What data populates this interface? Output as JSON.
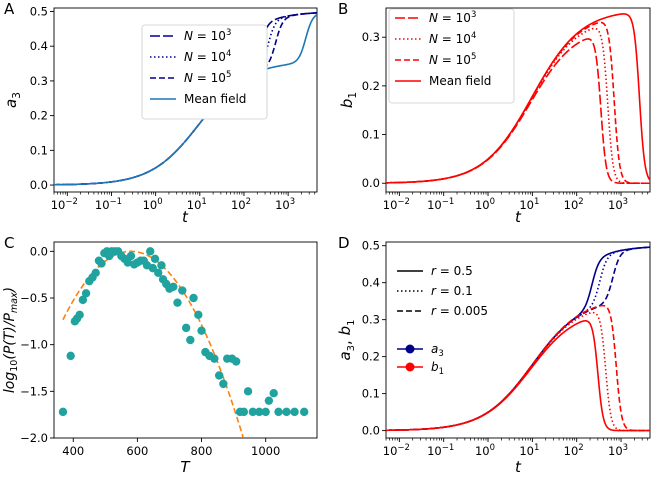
{
  "chart_data": [
    {
      "panel": "A",
      "type": "line",
      "xlabel": "t",
      "ylabel": "a3",
      "x_scale": "log",
      "xlim": [
        0.005,
        4500
      ],
      "ylim": [
        -0.02,
        0.51
      ],
      "x_ticks": [
        "−2",
        "−1",
        "0",
        "1",
        "2",
        "3"
      ],
      "y_ticks": [
        "0.0",
        "0.1",
        "0.2",
        "0.3",
        "0.4",
        "0.5"
      ],
      "legend_position": "center-right",
      "series": [
        {
          "name": "N = 10^3",
          "style": "longdash",
          "color": "#00008b",
          "plateau": 0.5,
          "rise_mid_t": 230
        },
        {
          "name": "N = 10^4",
          "style": "dotted",
          "color": "#00008b",
          "plateau": 0.5,
          "rise_mid_t": 350
        },
        {
          "name": "N = 10^5",
          "style": "dashed",
          "color": "#00008b",
          "plateau": 0.5,
          "rise_mid_t": 520
        },
        {
          "name": "Mean field",
          "style": "solid",
          "color": "#1f77b4",
          "plateau": 0.5,
          "rise_mid_t": 2500
        }
      ],
      "shared_curve": {
        "x": [
          0.005,
          0.01,
          0.1,
          0.5,
          1,
          2,
          5,
          10,
          20,
          50,
          100
        ],
        "y": [
          0.0,
          0.001,
          0.01,
          0.03,
          0.06,
          0.1,
          0.17,
          0.22,
          0.27,
          0.32,
          0.35
        ]
      }
    },
    {
      "panel": "B",
      "type": "line",
      "xlabel": "t",
      "ylabel": "b1",
      "x_scale": "log",
      "xlim": [
        0.005,
        4500
      ],
      "ylim": [
        -0.018,
        0.36
      ],
      "x_ticks": [
        "−2",
        "−1",
        "0",
        "1",
        "2",
        "3"
      ],
      "y_ticks": [
        "0.0",
        "0.1",
        "0.2",
        "0.3"
      ],
      "legend_position": "top-left",
      "series": [
        {
          "name": "N = 10^3",
          "style": "longdash",
          "color": "#ff0000",
          "peak": 0.32,
          "peak_t": 70,
          "fall_t": 350
        },
        {
          "name": "N = 10^4",
          "style": "dotted",
          "color": "#ff0000",
          "peak": 0.34,
          "peak_t": 120,
          "fall_t": 500
        },
        {
          "name": "N = 10^5",
          "style": "dashed",
          "color": "#ff0000",
          "peak": 0.35,
          "peak_t": 200,
          "fall_t": 700
        },
        {
          "name": "Mean field",
          "style": "solid",
          "color": "#ff0000",
          "peak": 0.357,
          "peak_t": 400,
          "fall_t": 2600
        }
      ]
    },
    {
      "panel": "C",
      "type": "scatter",
      "xlabel": "T",
      "ylabel": "log10(P(T)/Pmax)",
      "xlim": [
        340,
        1160
      ],
      "ylim": [
        -2.0,
        0.1
      ],
      "x_ticks": [
        "400",
        "600",
        "800",
        "1000"
      ],
      "y_ticks": [
        "0.0",
        "−0.5",
        "−1.0",
        "−1.5",
        "−2.0"
      ],
      "point_color": "#20a39e",
      "fit_color": "#ff7f0e",
      "points": [
        [
          368,
          -1.72
        ],
        [
          392,
          -1.12
        ],
        [
          405,
          -0.75
        ],
        [
          412,
          -0.72
        ],
        [
          420,
          -0.68
        ],
        [
          430,
          -0.52
        ],
        [
          440,
          -0.45
        ],
        [
          450,
          -0.32
        ],
        [
          460,
          -0.28
        ],
        [
          470,
          -0.23
        ],
        [
          480,
          -0.1
        ],
        [
          488,
          -0.13
        ],
        [
          497,
          -0.02
        ],
        [
          505,
          0.0
        ],
        [
          512,
          -0.05
        ],
        [
          520,
          0.0
        ],
        [
          530,
          0.0
        ],
        [
          540,
          0.0
        ],
        [
          550,
          -0.05
        ],
        [
          560,
          -0.08
        ],
        [
          570,
          -0.12
        ],
        [
          580,
          -0.05
        ],
        [
          590,
          -0.14
        ],
        [
          600,
          -0.12
        ],
        [
          610,
          -0.1
        ],
        [
          620,
          -0.1
        ],
        [
          630,
          -0.15
        ],
        [
          640,
          0.0
        ],
        [
          648,
          -0.18
        ],
        [
          655,
          -0.08
        ],
        [
          665,
          -0.23
        ],
        [
          675,
          -0.15
        ],
        [
          680,
          -0.3
        ],
        [
          690,
          -0.35
        ],
        [
          700,
          -0.4
        ],
        [
          712,
          -0.38
        ],
        [
          725,
          -0.55
        ],
        [
          740,
          -0.42
        ],
        [
          752,
          -0.82
        ],
        [
          765,
          -0.95
        ],
        [
          775,
          -0.5
        ],
        [
          790,
          -0.68
        ],
        [
          800,
          -0.85
        ],
        [
          812,
          -1.08
        ],
        [
          825,
          -1.12
        ],
        [
          840,
          -1.15
        ],
        [
          855,
          -1.33
        ],
        [
          868,
          -1.42
        ],
        [
          880,
          -1.15
        ],
        [
          895,
          -1.15
        ],
        [
          908,
          -1.18
        ],
        [
          920,
          -1.72
        ],
        [
          932,
          -1.72
        ],
        [
          945,
          -1.5
        ],
        [
          960,
          -1.72
        ],
        [
          980,
          -1.72
        ],
        [
          1000,
          -1.72
        ],
        [
          1010,
          -1.6
        ],
        [
          1025,
          -1.52
        ],
        [
          1040,
          -1.72
        ],
        [
          1065,
          -1.72
        ],
        [
          1090,
          -1.72
        ],
        [
          1120,
          -1.72
        ]
      ],
      "fit": {
        "type": "parabola",
        "vertex_x": 580,
        "vertex_y": 0.0,
        "curvature": -1.63e-05,
        "x_range": [
          368,
          935
        ]
      }
    },
    {
      "panel": "D",
      "type": "line",
      "xlabel": "t",
      "ylabel": "a3, b1",
      "x_scale": "log",
      "xlim": [
        0.005,
        4500
      ],
      "ylim": [
        -0.02,
        0.51
      ],
      "x_ticks": [
        "−2",
        "−1",
        "0",
        "1",
        "2",
        "3"
      ],
      "y_ticks": [
        "0.0",
        "0.1",
        "0.2",
        "0.3",
        "0.4",
        "0.5"
      ],
      "legend_styles": [
        {
          "label": "r = 0.5",
          "style": "solid"
        },
        {
          "label": "r = 0.1",
          "style": "dotted"
        },
        {
          "label": "r = 0.005",
          "style": "dashed"
        }
      ],
      "legend_colors": [
        {
          "label": "a3",
          "color": "#00008b"
        },
        {
          "label": "b1",
          "color": "#ff0000"
        }
      ],
      "series": [
        {
          "name": "a3, r = 0.5",
          "color": "#00008b",
          "style": "solid",
          "plateau": 0.5,
          "rise_mid_t": 220
        },
        {
          "name": "a3, r = 0.1",
          "color": "#00008b",
          "style": "dotted",
          "plateau": 0.5,
          "rise_mid_t": 330
        },
        {
          "name": "a3, r = 0.005",
          "color": "#00008b",
          "style": "dashed",
          "plateau": 0.5,
          "rise_mid_t": 650
        },
        {
          "name": "b1, r = 0.5",
          "color": "#ff0000",
          "style": "solid",
          "peak": 0.325,
          "peak_t": 70,
          "fall_t": 300
        },
        {
          "name": "b1, r = 0.1",
          "color": "#ff0000",
          "style": "dotted",
          "peak": 0.345,
          "peak_t": 110,
          "fall_t": 450
        },
        {
          "name": "b1, r = 0.005",
          "color": "#ff0000",
          "style": "dashed",
          "peak": 0.36,
          "peak_t": 180,
          "fall_t": 780
        }
      ]
    }
  ],
  "panel_labels": [
    "A",
    "B",
    "C",
    "D"
  ]
}
